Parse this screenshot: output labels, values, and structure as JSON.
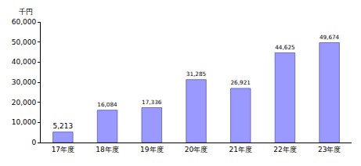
{
  "chart_data": {
    "type": "bar",
    "ylabel": "千円",
    "categories": [
      "17年度",
      "18年度",
      "19年度",
      "20年度",
      "21年度",
      "22年度",
      "23年度"
    ],
    "values": [
      5213,
      16084,
      17336,
      31285,
      26921,
      44625,
      49674
    ],
    "value_labels": [
      "5,213",
      "16,084",
      "17,336",
      "31,285",
      "26,921",
      "44,625",
      "49,674"
    ],
    "color": "#9999ff",
    "ylim": [
      0,
      60000
    ],
    "yticks": [
      0,
      {
        "value": 10000,
        "label": "10,000"
      },
      {
        "value": 20000,
        "label": "20,000"
      },
      {
        "value": 30000,
        "label": "30,000"
      },
      {
        "value": 40000,
        "label": "40,000"
      },
      {
        "value": 50000,
        "label": "50,000"
      },
      {
        "value": 60000,
        "label": "60,000"
      }
    ],
    "grid": false,
    "data_labels": true
  }
}
